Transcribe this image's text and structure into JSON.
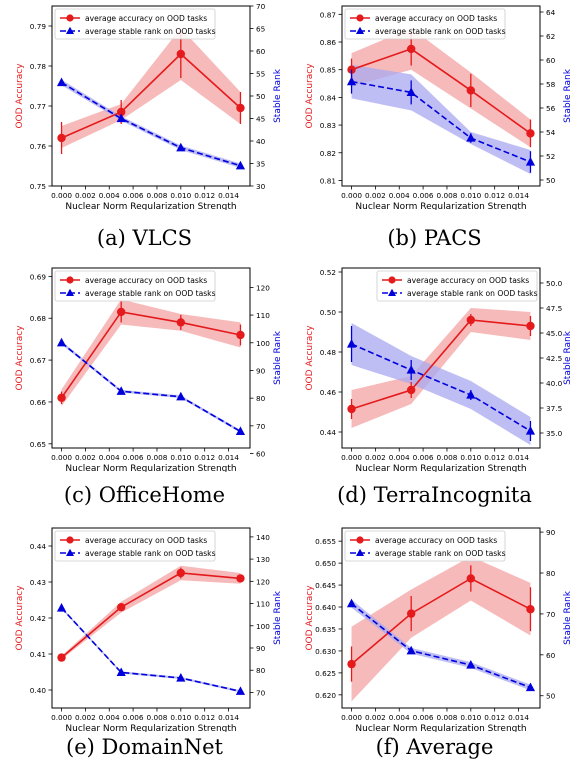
{
  "figure": {
    "captions": [
      "(a) VLCS",
      "(b) PACS",
      "(c) OfficeHome",
      "(d) TerraIncognita",
      "(e) DomainNet",
      "(f) Average"
    ]
  },
  "colors": {
    "accuracy": "#e41a1c",
    "accuracy_band": "#f4a3a3",
    "rank": "#0000dd",
    "rank_band": "#a8a8f0"
  },
  "chart_data": [
    {
      "type": "line",
      "panel": "(a) VLCS",
      "xlabel": "Nuclear Norm Regularization Strength",
      "ylabel": "OOD Accuracy",
      "y2label": "Stable Rank",
      "x": [
        0.0,
        0.005,
        0.01,
        0.015
      ],
      "xticks": [
        "0.000",
        "0.002",
        "0.004",
        "0.006",
        "0.008",
        "0.010",
        "0.012",
        "0.014"
      ],
      "xlim": [
        -0.0008,
        0.0158
      ],
      "ylim": [
        0.75,
        0.795
      ],
      "yticks": [
        "0.75",
        "0.76",
        "0.77",
        "0.78",
        "0.79"
      ],
      "y2lim": [
        30,
        70
      ],
      "y2ticks": [
        "30",
        "35",
        "40",
        "45",
        "50",
        "55",
        "60",
        "65",
        "70"
      ],
      "legend": "top-left",
      "series": [
        {
          "name": "average accuracy on OOD tasks",
          "axis": "left",
          "values": [
            0.762,
            0.7685,
            0.783,
            0.7695
          ],
          "band_low": [
            0.7595,
            0.7665,
            0.7765,
            0.7655
          ],
          "band_high": [
            0.765,
            0.7705,
            0.7895,
            0.7735
          ],
          "err": [
            0.004,
            0.003,
            0.006,
            0.004
          ]
        },
        {
          "name": "average stable rank on OOD tasks",
          "axis": "right",
          "values": [
            53,
            45,
            38.5,
            34.5
          ],
          "band_low": [
            52.4,
            44.5,
            38,
            34
          ],
          "band_high": [
            53.6,
            45.5,
            39,
            35
          ],
          "err": [
            0.5,
            0.5,
            0.5,
            0.5
          ]
        }
      ]
    },
    {
      "type": "line",
      "panel": "(b) PACS",
      "xlabel": "Nuclear Norm Regularization Strength",
      "ylabel": "OOD Accuracy",
      "y2label": "Stable Rank",
      "x": [
        0.0,
        0.005,
        0.01,
        0.015
      ],
      "xticks": [
        "0.000",
        "0.002",
        "0.004",
        "0.006",
        "0.008",
        "0.010",
        "0.012",
        "0.014"
      ],
      "xlim": [
        -0.0008,
        0.0158
      ],
      "ylim": [
        0.808,
        0.873
      ],
      "yticks": [
        "0.81",
        "0.82",
        "0.83",
        "0.84",
        "0.85",
        "0.86",
        "0.87"
      ],
      "y2lim": [
        49.5,
        64.5
      ],
      "y2ticks": [
        "50",
        "52",
        "54",
        "56",
        "58",
        "60",
        "62",
        "64"
      ],
      "legend": "top-left",
      "series": [
        {
          "name": "average accuracy on OOD tasks",
          "axis": "left",
          "values": [
            0.85,
            0.8575,
            0.8425,
            0.827
          ],
          "band_low": [
            0.844,
            0.85,
            0.836,
            0.822
          ],
          "band_high": [
            0.856,
            0.865,
            0.849,
            0.832
          ],
          "err": [
            0.004,
            0.006,
            0.006,
            0.005
          ]
        },
        {
          "name": "average stable rank on OOD tasks",
          "axis": "right",
          "values": [
            58.2,
            57.3,
            53.5,
            51.5
          ],
          "band_low": [
            56.8,
            55.8,
            53,
            50.5
          ],
          "band_high": [
            59.6,
            58.8,
            54,
            52.5
          ],
          "err": [
            1,
            1,
            0.4,
            0.9
          ]
        }
      ]
    },
    {
      "type": "line",
      "panel": "(c) OfficeHome",
      "xlabel": "Nuclear Norm Regularization Strength",
      "ylabel": "OOD Accuracy",
      "y2label": "Stable Rank",
      "x": [
        0.0,
        0.005,
        0.01,
        0.015
      ],
      "xticks": [
        "0.000",
        "0.002",
        "0.004",
        "0.006",
        "0.008",
        "0.010",
        "0.012",
        "0.014"
      ],
      "xlim": [
        -0.0008,
        0.0158
      ],
      "ylim": [
        0.649,
        0.692
      ],
      "yticks": [
        "0.65",
        "0.66",
        "0.67",
        "0.68",
        "0.69"
      ],
      "y2lim": [
        62,
        127
      ],
      "y2ticks": [
        "60",
        "70",
        "80",
        "90",
        "100",
        "110",
        "120"
      ],
      "legend": "top-left",
      "series": [
        {
          "name": "average accuracy on OOD tasks",
          "axis": "left",
          "values": [
            0.661,
            0.6815,
            0.679,
            0.676
          ],
          "band_low": [
            0.659,
            0.6785,
            0.677,
            0.673
          ],
          "band_high": [
            0.663,
            0.6845,
            0.681,
            0.679
          ],
          "err": [
            0.0015,
            0.0025,
            0.0018,
            0.0025
          ]
        },
        {
          "name": "average stable rank on OOD tasks",
          "axis": "right",
          "values": [
            100,
            82.5,
            80.5,
            68
          ],
          "band_low": [
            99.4,
            82,
            80,
            67.5
          ],
          "band_high": [
            100.6,
            83,
            81,
            68.5
          ],
          "err": [
            0.5,
            0.5,
            0.5,
            0.5
          ]
        }
      ]
    },
    {
      "type": "line",
      "panel": "(d) TerraIncognita",
      "xlabel": "Nuclear Norm Regularization Strength",
      "ylabel": "OOD Accuracy",
      "y2label": "Stable Rank",
      "x": [
        0.0,
        0.005,
        0.01,
        0.015
      ],
      "xticks": [
        "0.000",
        "0.002",
        "0.004",
        "0.006",
        "0.008",
        "0.010",
        "0.012",
        "0.014"
      ],
      "xlim": [
        -0.0008,
        0.0158
      ],
      "ylim": [
        0.432,
        0.522
      ],
      "yticks": [
        "0.44",
        "0.46",
        "0.48",
        "0.50",
        "0.52"
      ],
      "y2lim": [
        33.5,
        51.5
      ],
      "y2ticks": [
        "35.0",
        "37.5",
        "40.0",
        "42.5",
        "45.0",
        "47.5",
        "50.0"
      ],
      "legend": "top-right",
      "series": [
        {
          "name": "average accuracy on OOD tasks",
          "axis": "left",
          "values": [
            0.4515,
            0.461,
            0.496,
            0.493
          ],
          "band_low": [
            0.442,
            0.454,
            0.49,
            0.486
          ],
          "band_high": [
            0.461,
            0.468,
            0.502,
            0.5
          ],
          "err": [
            0.005,
            0.004,
            0.003,
            0.005
          ]
        },
        {
          "name": "average stable rank on OOD tasks",
          "axis": "right",
          "values": [
            43.9,
            41.3,
            38.8,
            35.2
          ],
          "band_low": [
            41.8,
            39.9,
            37.4,
            33.8
          ],
          "band_high": [
            46,
            42.7,
            40.2,
            36.6
          ],
          "err": [
            1.8,
            1,
            0.5,
            1
          ]
        }
      ]
    },
    {
      "type": "line",
      "panel": "(e) DomainNet",
      "xlabel": "Nuclear Norm Regularization Strength",
      "ylabel": "OOD Accuracy",
      "y2label": "Stable Rank",
      "x": [
        0.0,
        0.005,
        0.01,
        0.015
      ],
      "xticks": [
        "0.000",
        "0.002",
        "0.004",
        "0.006",
        "0.008",
        "0.010",
        "0.012",
        "0.014"
      ],
      "xlim": [
        -0.0008,
        0.0158
      ],
      "ylim": [
        0.395,
        0.445
      ],
      "yticks": [
        "0.40",
        "0.41",
        "0.42",
        "0.43",
        "0.44"
      ],
      "y2lim": [
        63,
        144
      ],
      "y2ticks": [
        "70",
        "80",
        "90",
        "100",
        "110",
        "120",
        "130",
        "140"
      ],
      "legend": "top-left",
      "series": [
        {
          "name": "average accuracy on OOD tasks",
          "axis": "left",
          "values": [
            0.409,
            0.423,
            0.4325,
            0.431
          ],
          "band_low": [
            0.4085,
            0.4215,
            0.4305,
            0.4295
          ],
          "band_high": [
            0.4095,
            0.4245,
            0.4345,
            0.4325
          ],
          "err": [
            0.0005,
            0.001,
            0.0015,
            0.001
          ]
        },
        {
          "name": "average stable rank on OOD tasks",
          "axis": "right",
          "values": [
            108,
            79,
            76.5,
            70.5
          ],
          "band_low": [
            107.5,
            78.5,
            76,
            70
          ],
          "band_high": [
            108.5,
            79.5,
            77,
            71
          ],
          "err": [
            0.5,
            0.5,
            0.5,
            0.5
          ]
        }
      ]
    },
    {
      "type": "line",
      "panel": "(f) Average",
      "xlabel": "Nuclear Norm Regularization Strength",
      "ylabel": "OOD Accuracy",
      "y2label": "Stable Rank",
      "x": [
        0.0,
        0.005,
        0.01,
        0.015
      ],
      "xticks": [
        "0.000",
        "0.002",
        "0.004",
        "0.006",
        "0.008",
        "0.010",
        "0.012",
        "0.014"
      ],
      "xlim": [
        -0.0008,
        0.0158
      ],
      "ylim": [
        0.617,
        0.658
      ],
      "yticks": [
        "0.620",
        "0.625",
        "0.630",
        "0.635",
        "0.640",
        "0.645",
        "0.650",
        "0.655"
      ],
      "y2lim": [
        47,
        91
      ],
      "y2ticks": [
        "50",
        "60",
        "70",
        "80",
        "90"
      ],
      "legend": "top-left",
      "series": [
        {
          "name": "average accuracy on OOD tasks",
          "axis": "left",
          "values": [
            0.627,
            0.6385,
            0.6465,
            0.6395
          ],
          "band_low": [
            0.6185,
            0.633,
            0.6415,
            0.6335
          ],
          "band_high": [
            0.6355,
            0.644,
            0.6515,
            0.6455
          ],
          "err": [
            0.004,
            0.004,
            0.003,
            0.005
          ]
        },
        {
          "name": "average stable rank on OOD tasks",
          "axis": "right",
          "values": [
            72.5,
            61,
            57.5,
            52
          ],
          "band_low": [
            71.5,
            60.3,
            56.8,
            51.3
          ],
          "band_high": [
            73.5,
            61.7,
            58.2,
            52.7
          ],
          "err": [
            0.5,
            0.5,
            0.5,
            0.5
          ]
        }
      ]
    }
  ]
}
